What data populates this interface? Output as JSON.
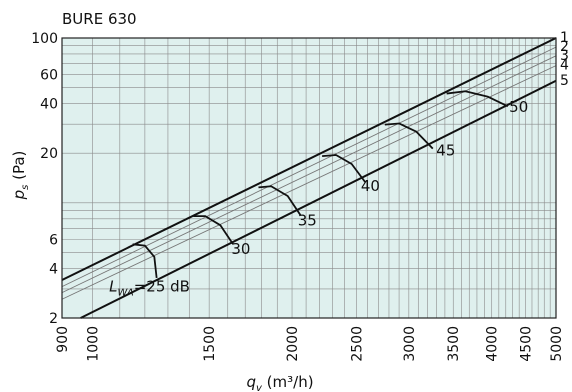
{
  "chart_data": {
    "type": "line",
    "title": "BURE 630",
    "xlabel_parts": {
      "q": "q",
      "sub": "v",
      "unit": " (m³/h)"
    },
    "ylabel_parts": {
      "p": "p",
      "sub": "s",
      "unit": " (Pa)"
    },
    "x_scale": "log",
    "y_scale": "log",
    "xlim": [
      900,
      5000
    ],
    "ylim": [
      2,
      100
    ],
    "x_ticks": [
      900,
      1000,
      1500,
      2000,
      2500,
      3000,
      3500,
      4000,
      4500,
      5000
    ],
    "x_tick_labels": [
      "900",
      "1000",
      "1500",
      "2000",
      "2500",
      "3000",
      "3500",
      "4000",
      "4500",
      "5000"
    ],
    "y_ticks": [
      2,
      4,
      6,
      20,
      40,
      60,
      100
    ],
    "y_tick_labels": [
      "2",
      "4",
      "6",
      "20",
      "40",
      "60",
      "100"
    ],
    "grid": true,
    "background": "#dff0ee",
    "series": [
      {
        "name": "1",
        "points": [
          [
            900,
            3.4
          ],
          [
            5000,
            100
          ]
        ],
        "bold": true
      },
      {
        "name": "2",
        "points": [
          [
            900,
            3.1
          ],
          [
            5000,
            88
          ]
        ],
        "bold": false
      },
      {
        "name": "3",
        "points": [
          [
            900,
            2.85
          ],
          [
            5000,
            78
          ]
        ],
        "bold": false
      },
      {
        "name": "4",
        "points": [
          [
            900,
            2.6
          ],
          [
            5000,
            68
          ]
        ],
        "bold": false
      },
      {
        "name": "5",
        "points": [
          [
            960,
            2.0
          ],
          [
            5000,
            55
          ]
        ],
        "bold": true
      }
    ],
    "sound_curves": [
      {
        "label": "L",
        "label_sub": "WA",
        "label_rest": "=25 dB",
        "points": [
          [
            1150,
            5.6
          ],
          [
            1200,
            5.5
          ],
          [
            1240,
            4.7
          ],
          [
            1250,
            3.5
          ]
        ],
        "label_pos": [
          1060,
          2.9
        ]
      },
      {
        "label": "30",
        "points": [
          [
            1420,
            8.3
          ],
          [
            1480,
            8.3
          ],
          [
            1560,
            7.3
          ],
          [
            1630,
            5.6
          ]
        ],
        "label_pos": [
          1620,
          4.9
        ]
      },
      {
        "label": "35",
        "points": [
          [
            1780,
            12.4
          ],
          [
            1860,
            12.6
          ],
          [
            1970,
            11.0
          ],
          [
            2060,
            8.4
          ]
        ],
        "label_pos": [
          2040,
          7.3
        ]
      },
      {
        "label": "40",
        "points": [
          [
            2220,
            19.2
          ],
          [
            2330,
            19.5
          ],
          [
            2460,
            17.2
          ],
          [
            2580,
            13.3
          ]
        ],
        "label_pos": [
          2540,
          11.8
        ]
      },
      {
        "label": "45",
        "points": [
          [
            2760,
            29.8
          ],
          [
            2900,
            30.3
          ],
          [
            3080,
            27.0
          ],
          [
            3260,
            21.3
          ]
        ],
        "label_pos": [
          3300,
          19.3
        ]
      },
      {
        "label": "50",
        "points": [
          [
            3420,
            46.0
          ],
          [
            3650,
            47.5
          ],
          [
            3950,
            44.0
          ],
          [
            4230,
            38.5
          ]
        ],
        "label_pos": [
          4250,
          35.5
        ]
      }
    ]
  }
}
